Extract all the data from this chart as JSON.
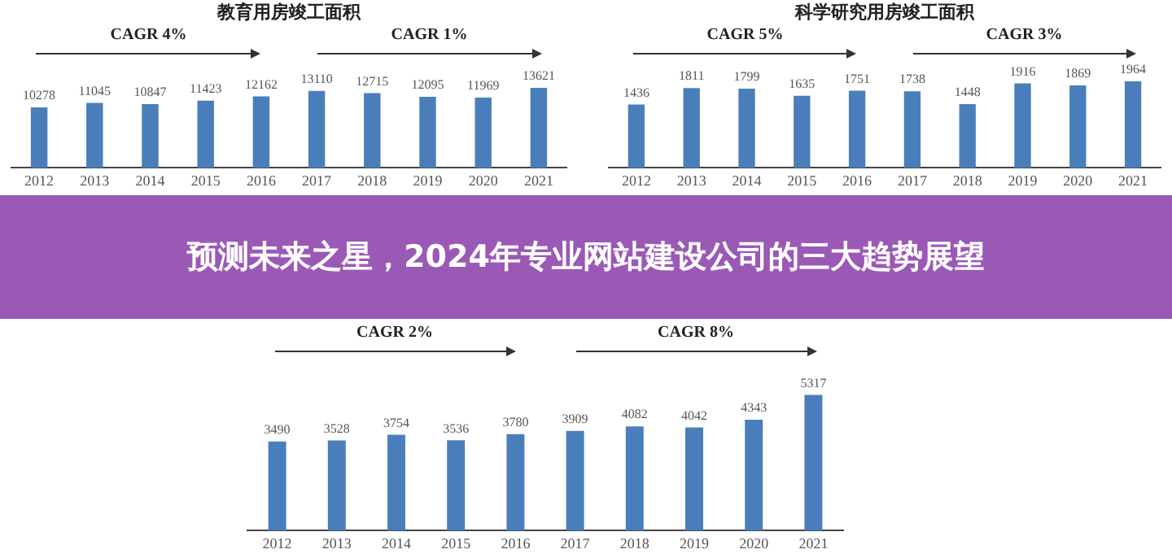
{
  "chart_data": [
    {
      "type": "bar",
      "title": "教育用房竣工面积",
      "categories": [
        "2012",
        "2013",
        "2014",
        "2015",
        "2016",
        "2017",
        "2018",
        "2019",
        "2020",
        "2021"
      ],
      "values": [
        10278,
        11045,
        10847,
        11423,
        12162,
        13110,
        12715,
        12095,
        11969,
        13621
      ],
      "color": "#4a7ebb",
      "data_labels": true,
      "annotations": [
        "CAGR 4%",
        "CAGR 1%"
      ]
    },
    {
      "type": "bar",
      "title": "科学研究用房竣工面积",
      "categories": [
        "2012",
        "2013",
        "2014",
        "2015",
        "2016",
        "2017",
        "2018",
        "2019",
        "2020",
        "2021"
      ],
      "values": [
        1436,
        1811,
        1799,
        1635,
        1751,
        1738,
        1448,
        1916,
        1869,
        1964
      ],
      "color": "#4a7ebb",
      "data_labels": true,
      "annotations": [
        "CAGR 5%",
        "CAGR 3%"
      ]
    },
    {
      "type": "bar",
      "categories": [
        "2012",
        "2013",
        "2014",
        "2015",
        "2016",
        "2017",
        "2018",
        "2019",
        "2020",
        "2021"
      ],
      "values": [
        3490,
        3528,
        3754,
        3536,
        3780,
        3909,
        4082,
        4042,
        4343,
        5317
      ],
      "color": "#4a7ebb",
      "data_labels": true,
      "annotations": [
        "CAGR 2%",
        "CAGR 8%"
      ]
    },
    {
      "type": "other",
      "title": "预测未来之星，2024年专业网站建设公司的三大趋势展望"
    }
  ]
}
